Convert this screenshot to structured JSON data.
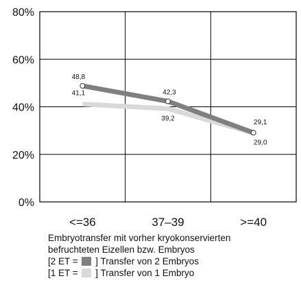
{
  "chart_data": {
    "type": "line",
    "categories": [
      "<=36",
      "37–39",
      ">=40"
    ],
    "ylim": [
      0,
      80
    ],
    "y_ticks": [
      "0%",
      "20%",
      "40%",
      "60%",
      "80%"
    ],
    "grid": true,
    "series": [
      {
        "name": "2 ET",
        "color": "#808080",
        "values": [
          48.8,
          42.3,
          29.1
        ],
        "labels": [
          "48,8",
          "42,3",
          "29,1"
        ]
      },
      {
        "name": "1 ET",
        "color": "#d9d9d9",
        "values": [
          41.1,
          39.2,
          29.0
        ],
        "labels": [
          "41,1",
          "39,2",
          "29,0"
        ]
      }
    ]
  },
  "caption": {
    "line1": "Embryotransfer mit vorher kryokonservierten",
    "line2": "befruchteten Eizellen bzw. Embryos",
    "legend": [
      {
        "prefix": "[2 ET =",
        "suffix": "] Transfer von 2 Embryos",
        "color": "#808080"
      },
      {
        "prefix": "[1 ET =",
        "suffix": "] Transfer von 1 Embryo",
        "color": "#d9d9d9"
      }
    ]
  }
}
